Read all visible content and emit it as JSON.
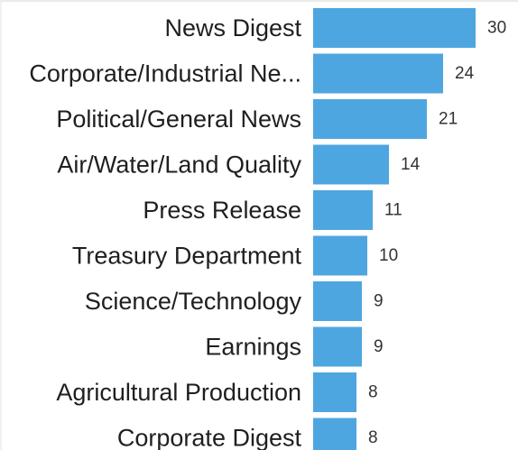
{
  "chart_data": {
    "type": "bar",
    "orientation": "horizontal",
    "categories": [
      "News Digest",
      "Corporate/Industrial Ne...",
      "Political/General News",
      "Air/Water/Land Quality",
      "Press Release",
      "Treasury Department",
      "Science/Technology",
      "Earnings",
      "Agricultural Production",
      "Corporate Digest"
    ],
    "values": [
      30,
      24,
      21,
      14,
      11,
      10,
      9,
      9,
      8,
      8
    ],
    "value_labels": [
      "30",
      "24",
      "21",
      "14",
      "11",
      "10",
      "9",
      "9",
      "8",
      "8"
    ],
    "bar_color": "#4da6e0",
    "title": "",
    "xlabel": "",
    "ylabel": "",
    "xlim": [
      0,
      30
    ],
    "grid": false,
    "legend": "none"
  }
}
